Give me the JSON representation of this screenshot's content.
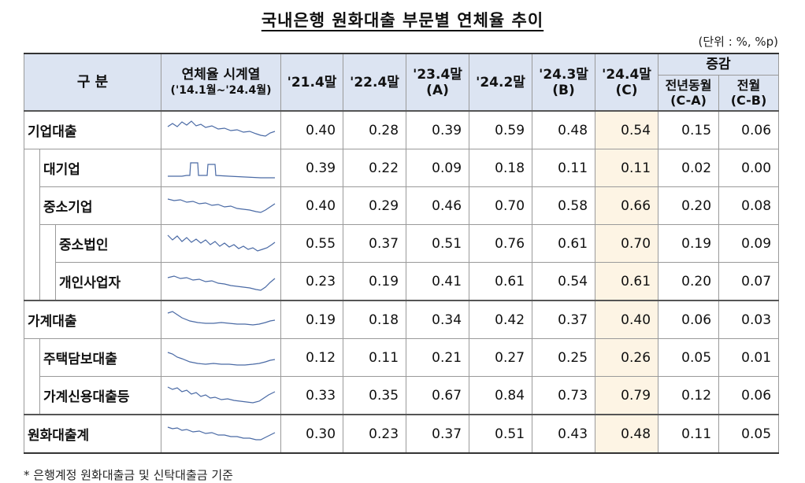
{
  "title": "국내은행 원화대출 부문별 연체율 추이",
  "unit": "(단위 : %, %p)",
  "headers": {
    "category": "구   분",
    "series_line1": "연체율 시계열",
    "series_line2": "('14.1월~'24.4월)",
    "c1": "'21.4말",
    "c2": "'22.4말",
    "c3_line1": "'23.4말",
    "c3_line2": "(A)",
    "c4": "'24.2말",
    "c5_line1": "'24.3말",
    "c5_line2": "(B)",
    "c6_line1": "'24.4말",
    "c6_line2": "(C)",
    "change": "증감",
    "yoy_line1": "전년동월",
    "yoy_line2": "(C-A)",
    "mom_line1": "전월",
    "mom_line2": "(C-B)"
  },
  "rows": [
    {
      "label": "기업대출",
      "level": 0,
      "values": [
        "0.40",
        "0.28",
        "0.39",
        "0.59",
        "0.48",
        "0.54",
        "0.15",
        "0.06"
      ]
    },
    {
      "label": "대기업",
      "level": 1,
      "values": [
        "0.39",
        "0.22",
        "0.09",
        "0.18",
        "0.11",
        "0.11",
        "0.02",
        "0.00"
      ]
    },
    {
      "label": "중소기업",
      "level": 1,
      "values": [
        "0.40",
        "0.29",
        "0.46",
        "0.70",
        "0.58",
        "0.66",
        "0.20",
        "0.08"
      ]
    },
    {
      "label": "중소법인",
      "level": 2,
      "values": [
        "0.55",
        "0.37",
        "0.51",
        "0.76",
        "0.61",
        "0.70",
        "0.19",
        "0.09"
      ]
    },
    {
      "label": "개인사업자",
      "level": 2,
      "values": [
        "0.23",
        "0.19",
        "0.41",
        "0.61",
        "0.54",
        "0.61",
        "0.20",
        "0.07"
      ]
    },
    {
      "label": "가계대출",
      "level": 0,
      "values": [
        "0.19",
        "0.18",
        "0.34",
        "0.42",
        "0.37",
        "0.40",
        "0.06",
        "0.03"
      ]
    },
    {
      "label": "주택담보대출",
      "level": 1,
      "values": [
        "0.12",
        "0.11",
        "0.21",
        "0.27",
        "0.25",
        "0.26",
        "0.05",
        "0.01"
      ]
    },
    {
      "label": "가계신용대출등",
      "level": 1,
      "values": [
        "0.33",
        "0.35",
        "0.67",
        "0.84",
        "0.73",
        "0.79",
        "0.12",
        "0.06"
      ]
    },
    {
      "label": "원화대출계",
      "level": 0,
      "values": [
        "0.30",
        "0.23",
        "0.37",
        "0.51",
        "0.43",
        "0.48",
        "0.11",
        "0.05"
      ]
    }
  ],
  "footnote": "* 은행계정 원화대출금 및 신탁대출금 기준",
  "colors": {
    "header_bg": "#dce4f2",
    "highlight_bg": "#fdf4e4",
    "sparkline": "#4a6aa5"
  }
}
